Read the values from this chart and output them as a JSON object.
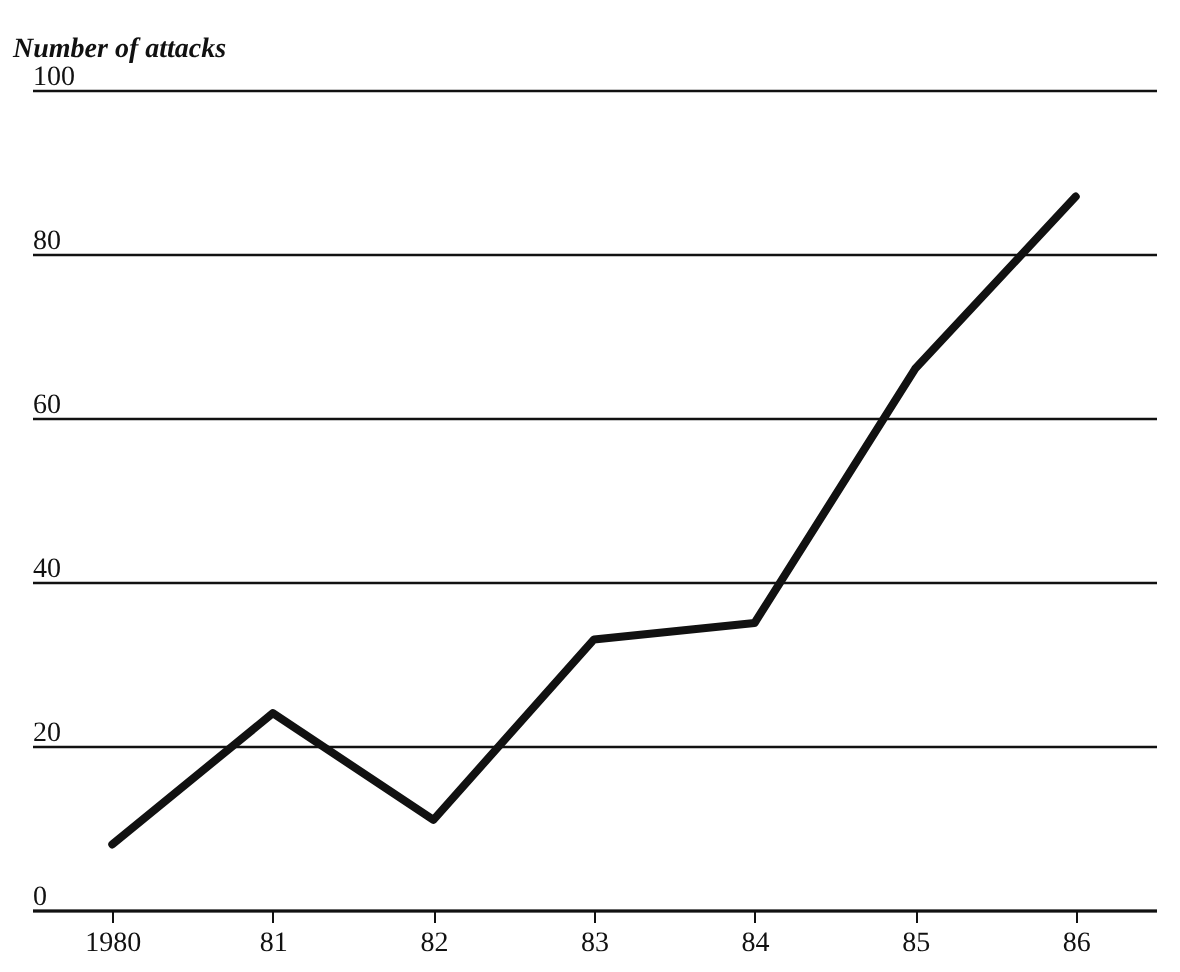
{
  "chart_data": {
    "type": "line",
    "ylabel": "Number of attacks",
    "categories": [
      "1980",
      "81",
      "82",
      "83",
      "84",
      "85",
      "86"
    ],
    "series": [
      {
        "color": "#111111",
        "values": [
          8,
          24,
          11,
          33,
          35,
          66,
          87
        ]
      }
    ],
    "ylim": [
      0,
      100
    ],
    "yticks": [
      0,
      20,
      40,
      60,
      80,
      100
    ],
    "grid": "y",
    "legend": false,
    "marker": "none",
    "line_style": "solid"
  }
}
